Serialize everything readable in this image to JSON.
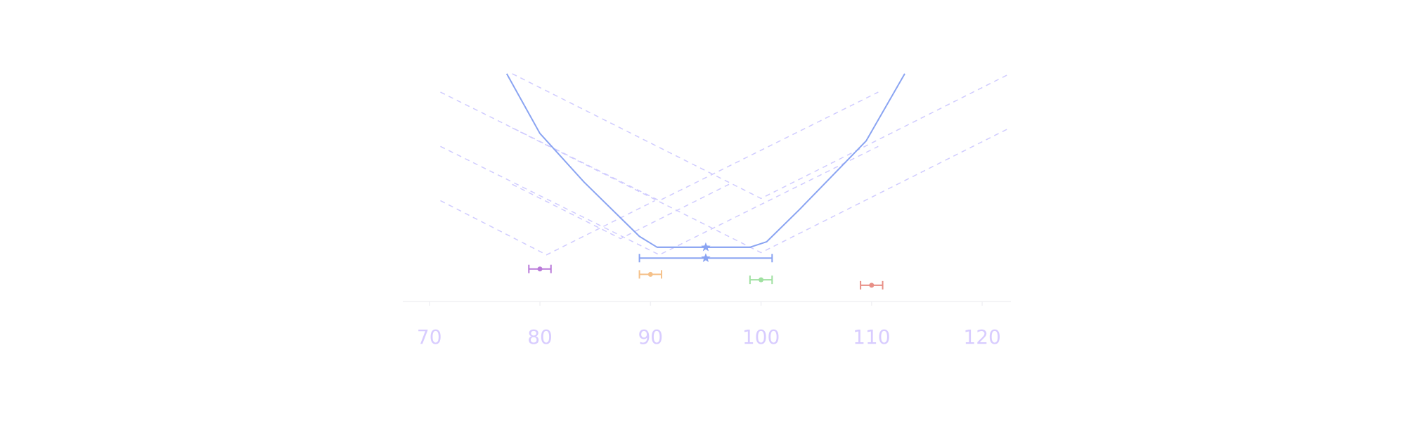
{
  "chart_data": {
    "type": "line",
    "title": "",
    "xlabel": "",
    "ylabel": "",
    "xlim": [
      67.6,
      122.6
    ],
    "ylim": [
      0,
      23
    ],
    "x_ticks": [
      70,
      80,
      90,
      100,
      110,
      120
    ],
    "x_tick_labels": [
      "70",
      "80",
      "90",
      "100",
      "110",
      "120"
    ],
    "grid": false,
    "legend": "none",
    "envelope": {
      "color": "#8aa4f2",
      "points": [
        [
          77,
          21
        ],
        [
          80,
          15.5
        ],
        [
          84,
          11
        ],
        [
          89,
          6
        ],
        [
          90.6,
          5
        ],
        [
          99,
          5
        ],
        [
          100.5,
          5.5
        ],
        [
          103.5,
          8.5
        ],
        [
          109.5,
          14.8
        ],
        [
          113,
          21
        ]
      ]
    },
    "dashed_vee_lines": {
      "color": "#d0ccff",
      "lines": [
        [
          [
            71,
            19.3
          ],
          [
            90.8,
            9.3
          ],
          [
            110.6,
            19.3
          ]
        ],
        [
          [
            71,
            14.3
          ],
          [
            90.8,
            4.3
          ],
          [
            110.6,
            14.3
          ]
        ],
        [
          [
            71,
            9.3
          ],
          [
            80.6,
            4.3
          ],
          [
            90.4,
            9.3
          ]
        ],
        [
          [
            77.5,
            21
          ],
          [
            100,
            9.5
          ],
          [
            122.5,
            21
          ]
        ],
        [
          [
            77.5,
            16
          ],
          [
            100,
            4.5
          ],
          [
            122.5,
            16
          ]
        ],
        [
          [
            77.5,
            10.8
          ],
          [
            87.3,
            5.8
          ],
          [
            97.1,
            10.8
          ]
        ]
      ]
    },
    "intervals": [
      {
        "center": 95,
        "low": 90.6,
        "high": 99.1,
        "y": 5,
        "marker": "star",
        "color": "#8aa4f2",
        "caps": false
      },
      {
        "center": 95,
        "low": 89,
        "high": 101,
        "y": 4,
        "marker": "star",
        "color": "#8aa4f2",
        "caps": true
      },
      {
        "center": 80,
        "low": 79,
        "high": 81,
        "y": 3,
        "marker": "circle",
        "color": "#b97ad9",
        "caps": true
      },
      {
        "center": 90,
        "low": 89,
        "high": 91,
        "y": 2.5,
        "marker": "circle",
        "color": "#f5c18a",
        "caps": true
      },
      {
        "center": 100,
        "low": 99,
        "high": 101,
        "y": 2,
        "marker": "circle",
        "color": "#9fe0a0",
        "caps": true
      },
      {
        "center": 110,
        "low": 109,
        "high": 111,
        "y": 1.5,
        "marker": "circle",
        "color": "#e88f86",
        "caps": true
      }
    ],
    "baseline_color": "#f1f1f4"
  }
}
